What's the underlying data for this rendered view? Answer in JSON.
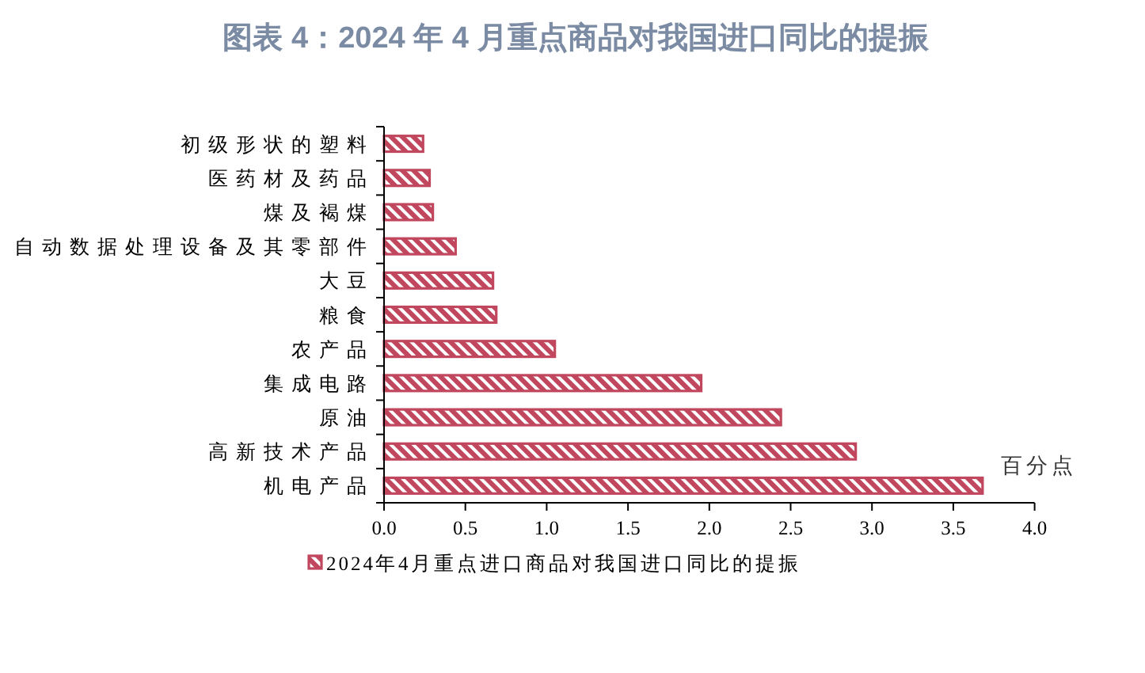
{
  "chart_data": {
    "type": "bar",
    "orientation": "horizontal",
    "title": "图表 4：2024 年 4 月重点商品对我国进口同比的提振",
    "categories": [
      "初级形状的塑料",
      "医药材及药品",
      "煤及褐煤",
      "自动数据处理设备及其零部件",
      "大豆",
      "粮食",
      "农产品",
      "集成电路",
      "原油",
      "高新技术产品",
      "机电产品"
    ],
    "series": [
      {
        "name": "2024年4月重点进口商品对我国进口同比的提振",
        "color": "#c0475e",
        "values": [
          0.24,
          0.28,
          0.3,
          0.44,
          0.67,
          0.69,
          1.05,
          1.95,
          2.44,
          2.9,
          3.68
        ]
      }
    ],
    "xlim": [
      0,
      4
    ],
    "xticks": [
      {
        "value": 0,
        "label": "0.0"
      },
      0.5,
      {
        "value": 1,
        "label": "1.0"
      },
      1.5,
      {
        "value": 2,
        "label": "2.0"
      },
      2.5,
      {
        "value": 3,
        "label": "3.0"
      },
      3.5,
      {
        "value": 4,
        "label": "4.0"
      }
    ],
    "annotations": [
      "百分点"
    ],
    "legend": "bottom"
  }
}
